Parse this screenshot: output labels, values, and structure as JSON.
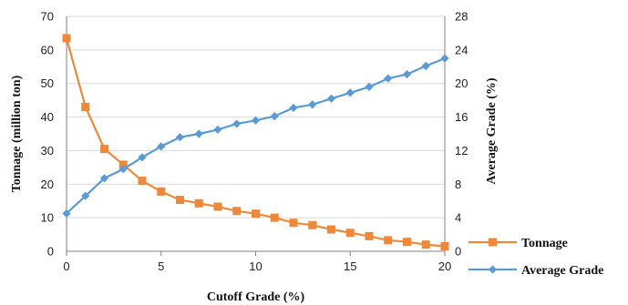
{
  "chart_data": {
    "type": "line",
    "title": "",
    "xlabel": "Cutoff Grade (%)",
    "ylabel_left": "Tonnage (million ton)",
    "ylabel_right": "Average Grade (%)",
    "xlim": [
      0,
      20
    ],
    "ylim_left": [
      0,
      70
    ],
    "ylim_right": [
      0,
      28
    ],
    "x_ticks": [
      "0",
      "5",
      "10",
      "15",
      "20"
    ],
    "y_left_ticks": [
      "0",
      "10",
      "20",
      "30",
      "40",
      "50",
      "60",
      "70"
    ],
    "y_right_ticks": [
      "0",
      "4",
      "8",
      "12",
      "16",
      "20",
      "24",
      "28"
    ],
    "grid": "horizontal",
    "legend_position": "bottom-right",
    "x": [
      0,
      1,
      2,
      3,
      4,
      5,
      6,
      7,
      8,
      9,
      10,
      11,
      12,
      13,
      14,
      15,
      16,
      17,
      18,
      19,
      20
    ],
    "series": [
      {
        "name": "Tonnage",
        "axis": "left",
        "marker": "square",
        "color": "#f0883a",
        "values": [
          63.5,
          43,
          30.5,
          25.8,
          21,
          17.8,
          15.3,
          14.3,
          13.3,
          12,
          11.2,
          10,
          8.5,
          7.8,
          6.5,
          5.5,
          4.5,
          3.3,
          2.8,
          2,
          1.5
        ]
      },
      {
        "name": "Average Grade",
        "axis": "right",
        "marker": "diamond",
        "color": "#5a9bd5",
        "values": [
          4.5,
          6.6,
          8.7,
          9.8,
          11.2,
          12.5,
          13.6,
          14,
          14.5,
          15.2,
          15.6,
          16.1,
          17.1,
          17.5,
          18.2,
          18.9,
          19.6,
          20.6,
          21.1,
          22.1,
          23
        ]
      }
    ]
  }
}
